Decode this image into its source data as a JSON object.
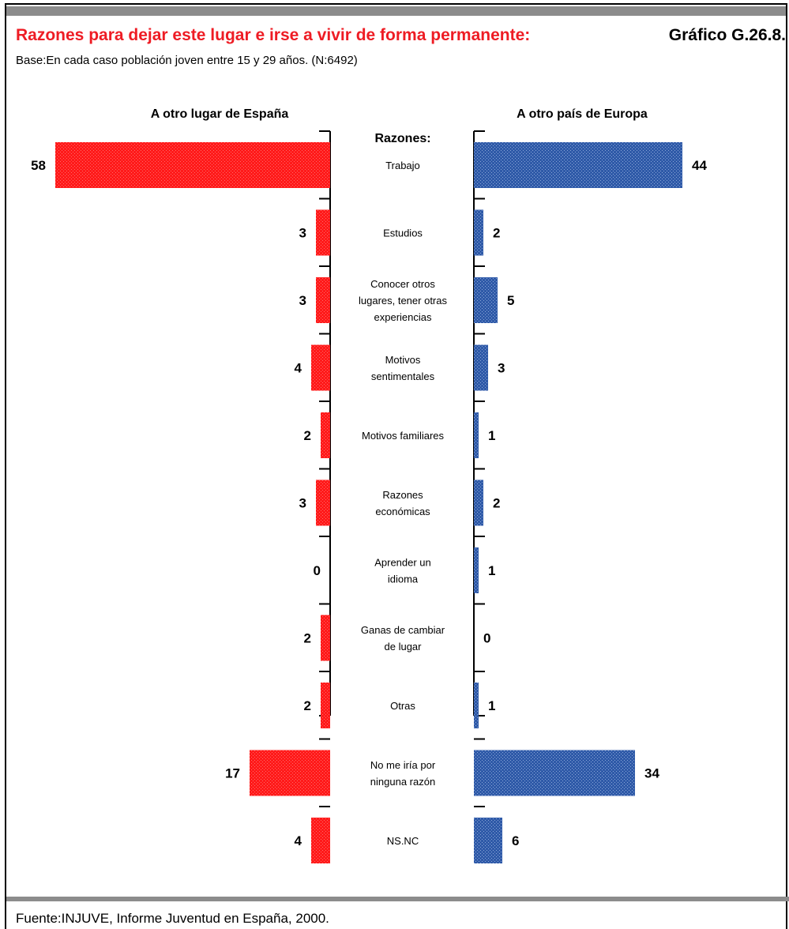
{
  "header": {
    "title": "Razones para dejar este lugar e irse a vivir de forma permanente:",
    "graph_number": "Gráfico G.26.8.",
    "subtitle": "Base:En cada caso población joven entre 15 y 29 años. (N:6492)"
  },
  "footer": {
    "source": "Fuente:INJUVE, Informe Juventud en España, 2000."
  },
  "colors": {
    "left_bar": "#ff1a1a",
    "right_bar": "#2f5aa8",
    "title": "#ee1c24"
  },
  "chart_data": {
    "type": "bar",
    "orientation": "horizontal",
    "center_label": "Razones:",
    "categories": [
      [
        "Trabajo"
      ],
      [
        "Estudios"
      ],
      [
        "Conocer otros",
        "lugares, tener otras",
        "experiencias"
      ],
      [
        "Motivos",
        "sentimentales"
      ],
      [
        "Motivos familiares"
      ],
      [
        "Razones",
        "económicas"
      ],
      [
        "Aprender un",
        "idioma"
      ],
      [
        "Ganas de cambiar",
        "de lugar"
      ],
      [
        "Otras"
      ],
      [
        "No me iría por",
        "ninguna razón"
      ],
      [
        "NS.NC"
      ]
    ],
    "series": [
      {
        "name": "A otro lugar de España",
        "side": "left",
        "values": [
          58,
          3,
          3,
          4,
          2,
          3,
          0,
          2,
          2,
          17,
          4
        ]
      },
      {
        "name": "A otro país de Europa",
        "side": "right",
        "values": [
          44,
          2,
          5,
          3,
          1,
          2,
          1,
          0,
          1,
          34,
          6
        ]
      }
    ]
  }
}
